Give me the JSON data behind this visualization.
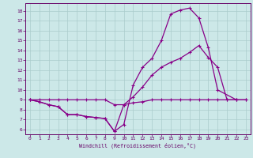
{
  "xlabel": "Windchill (Refroidissement éolien,°C)",
  "bg_color": "#cce8e8",
  "grid_color": "#aacccc",
  "line_color": "#880088",
  "axis_color": "#660066",
  "marker": "+",
  "xlim": [
    -0.5,
    23.5
  ],
  "ylim": [
    5.5,
    18.8
  ],
  "xticks": [
    0,
    1,
    2,
    3,
    4,
    5,
    6,
    7,
    8,
    9,
    10,
    11,
    12,
    13,
    14,
    15,
    16,
    17,
    18,
    19,
    20,
    21,
    22,
    23
  ],
  "yticks": [
    6,
    7,
    8,
    9,
    10,
    11,
    12,
    13,
    14,
    15,
    16,
    17,
    18
  ],
  "line1_x": [
    0,
    1,
    2,
    3,
    4,
    5,
    6,
    7,
    8,
    9,
    10,
    11,
    12,
    13,
    14,
    15,
    16,
    17,
    18,
    19,
    20,
    22
  ],
  "line1_y": [
    9.0,
    8.8,
    8.5,
    8.3,
    7.5,
    7.5,
    7.3,
    7.2,
    7.1,
    5.8,
    6.5,
    10.5,
    12.3,
    13.2,
    15.0,
    17.7,
    18.1,
    18.3,
    17.3,
    14.3,
    10.0,
    9.0
  ],
  "line2_x": [
    0,
    1,
    2,
    3,
    4,
    5,
    6,
    7,
    8,
    9,
    10,
    11,
    12,
    13,
    14,
    15,
    16,
    17,
    18,
    19,
    20,
    21,
    22,
    23
  ],
  "line2_y": [
    9.0,
    8.8,
    8.5,
    8.3,
    7.5,
    7.5,
    7.3,
    7.2,
    7.1,
    5.8,
    8.5,
    9.3,
    10.3,
    11.5,
    12.3,
    12.8,
    13.2,
    13.8,
    14.5,
    13.3,
    12.3,
    9.0,
    9.0,
    9.0
  ],
  "line3_x": [
    0,
    1,
    2,
    3,
    4,
    5,
    6,
    7,
    8,
    9,
    10,
    11,
    12,
    13,
    14,
    15,
    16,
    17,
    18,
    19,
    20,
    21,
    22,
    23
  ],
  "line3_y": [
    9.0,
    9.0,
    9.0,
    9.0,
    9.0,
    9.0,
    9.0,
    9.0,
    9.0,
    8.5,
    8.5,
    8.7,
    8.8,
    9.0,
    9.0,
    9.0,
    9.0,
    9.0,
    9.0,
    9.0,
    9.0,
    9.0,
    9.0,
    9.0
  ]
}
